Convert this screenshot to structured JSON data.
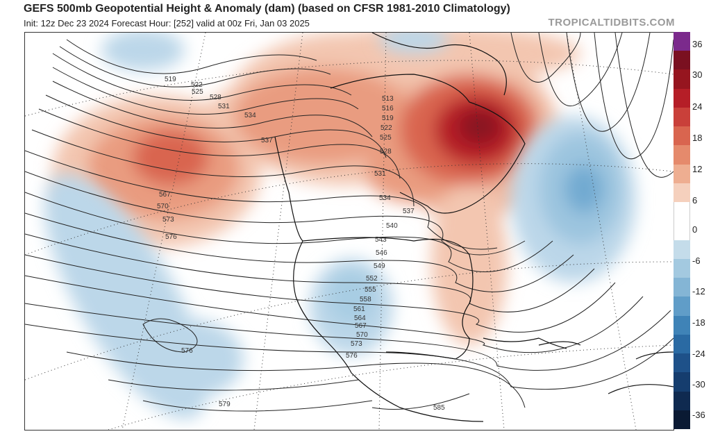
{
  "header": {
    "title": "GEFS 500mb Geopotential Height & Anomaly (dam) (based on CFSR 1981-2010 Climatology)",
    "subtitle": "Init: 12z Dec 23 2024   Forecast Hour: [252]   valid at 00z Fri, Jan 03 2025",
    "watermark": "TROPICALTIDBITS.COM"
  },
  "colorbar": {
    "labels": [
      "36",
      "30",
      "24",
      "18",
      "12",
      "6",
      "0",
      "-6",
      "-12",
      "-18",
      "-24",
      "-30",
      "-36"
    ],
    "colors": [
      "#7b2a8c",
      "#7a1020",
      "#96151f",
      "#b51e27",
      "#c9403a",
      "#d9654f",
      "#e58a6c",
      "#eeae91",
      "#f5d0bd",
      "#ffffff",
      "#ffffff",
      "#c4dcea",
      "#a3c9e0",
      "#84b5d5",
      "#609dc8",
      "#3f83b7",
      "#2a6aa3",
      "#1e5189",
      "#153d6e",
      "#0f2a50",
      "#0a1a33"
    ]
  },
  "map": {
    "height_labels": [
      "519",
      "522",
      "525",
      "528",
      "531",
      "534",
      "537",
      "567",
      "570",
      "573",
      "576",
      "513",
      "516",
      "519",
      "522",
      "525",
      "528",
      "531",
      "534",
      "537",
      "540",
      "543",
      "546",
      "549",
      "552",
      "555",
      "558",
      "561",
      "564",
      "567",
      "570",
      "573",
      "576",
      "576",
      "579",
      "585"
    ]
  }
}
